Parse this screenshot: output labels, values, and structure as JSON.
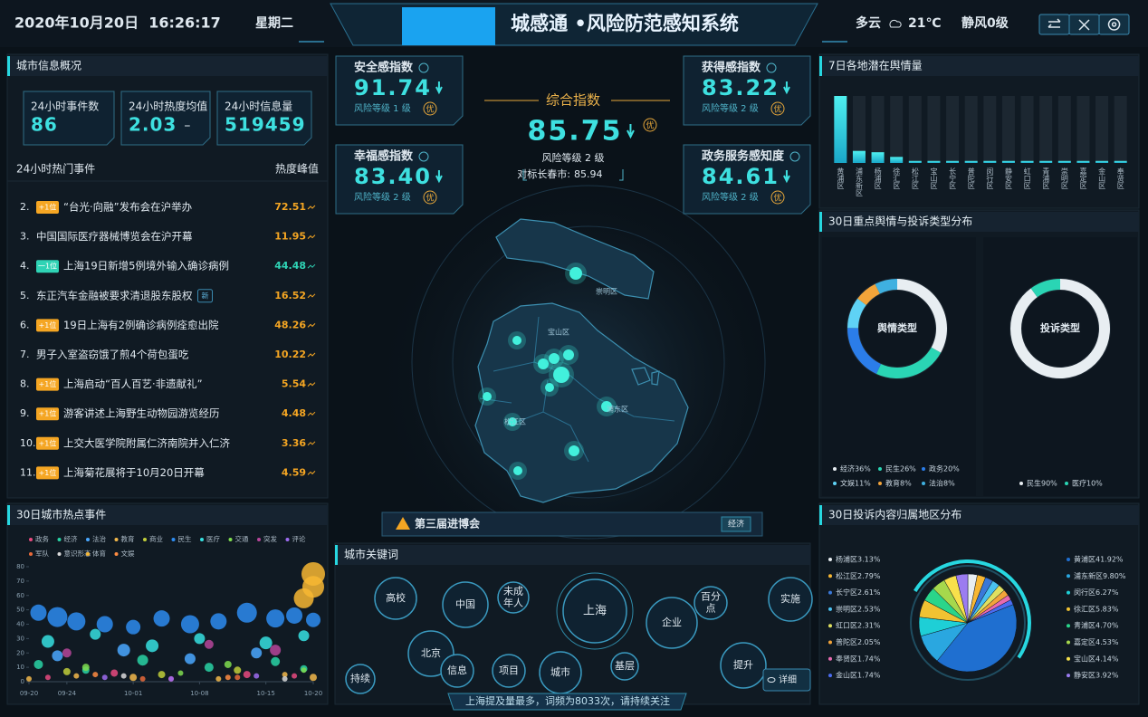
{
  "header": {
    "date": "2020年10月20日  16:26:17",
    "weekday": "星期二",
    "title": "城感通 •风险防范感知系统",
    "weather": "多云",
    "temperature": "21℃",
    "wind": "静风0级"
  },
  "overview": {
    "title": "城市信息概况",
    "cards": [
      {
        "label": "24小时事件数",
        "value": 86
      },
      {
        "label": "24小时热度均值",
        "value": 2.03,
        "trend": "–"
      },
      {
        "label": "24小时信息量",
        "value": 519459
      }
    ]
  },
  "hot_events": {
    "title": "24小时热门事件",
    "value_header": "热度峰值",
    "value_color": "#f5a623",
    "items": [
      {
        "rank": "2.",
        "tag": "+1位",
        "text": "“台光·向融”发布会在沪举办",
        "value": 72.51
      },
      {
        "rank": "3.",
        "text": "中国国际医疗器械博览会在沪开幕",
        "value": 11.95
      },
      {
        "rank": "4.",
        "tag": "一1位",
        "text": "上海19日新增5例境外输入确诊病例",
        "value": 44.48,
        "color": "#2fd3b5"
      },
      {
        "rank": "5.",
        "text": "东正汽车金融被要求清退股东股权",
        "badge": "新",
        "value": 16.52
      },
      {
        "rank": "6.",
        "tag": "+1位",
        "text": "19日上海有2例确诊病例痊愈出院",
        "value": 48.26
      },
      {
        "rank": "7.",
        "text": "男子入室盗窃饿了煎4个荷包蛋吃",
        "value": 10.22
      },
      {
        "rank": "8.",
        "tag": "+1位",
        "text": "上海启动“百人百艺·非遗献礼”",
        "value": 5.54
      },
      {
        "rank": "9.",
        "tag": "+1位",
        "text": "游客讲述上海野生动物园游览经历",
        "value": 4.48
      },
      {
        "rank": "10.",
        "tag": "+1位",
        "text": "上交大医学院附属仁济南院并入仁济",
        "value": 3.36
      },
      {
        "rank": "11.",
        "tag": "+1位",
        "text": "上海菊花展将于10月20日开幕",
        "value": 4.59
      }
    ]
  },
  "indices": {
    "composite": {
      "label": "综合指数",
      "value": 85.75,
      "grade": "优",
      "risk": "风险等级 2 级",
      "benchmark_label": "对标长春市:",
      "benchmark": 85.94
    },
    "cards": [
      {
        "label": "安全感指数",
        "value": 91.74,
        "risk": "风险等级 1 级",
        "grade": "优"
      },
      {
        "label": "获得感指数",
        "value": 83.22,
        "risk": "风险等级 2 级",
        "grade": "优"
      },
      {
        "label": "幸福感指数",
        "value": 83.4,
        "value_label": "83.40",
        "risk": "风险等级 2 级",
        "grade": "优"
      },
      {
        "label": "政务服务感知度",
        "value": 84.61,
        "risk": "风险等级 2 级",
        "grade": "优"
      }
    ]
  },
  "map": {
    "districts": [
      "崇明区",
      "宝山区",
      "浦东区",
      "松江区"
    ]
  },
  "alert": {
    "text": "第三届进博会",
    "tag": "经济"
  },
  "keywords": {
    "title": "城市关键词",
    "words": [
      "高校",
      "中国",
      "未成年人",
      "上海",
      "百分点",
      "实施",
      "北京",
      "信息",
      "项目",
      "城市",
      "基层",
      "企业",
      "提升",
      "持续"
    ],
    "detail": "详细",
    "summary": "上海提及量最多，词频为8033次，请持续关注"
  },
  "sections": {
    "type_distribution": "30日重点舆情与投诉类型分布"
  },
  "chart_data": [
    {
      "type": "scatter",
      "title": "30日城市热点事件",
      "xlim": [
        "09-20",
        "10-20"
      ],
      "xticks": [
        "09-20",
        "09-24",
        "10-01",
        "10-08",
        "10-15",
        "10-20"
      ],
      "ylim": [
        0,
        80
      ],
      "yticks": [
        0,
        10,
        20,
        30,
        40,
        50,
        60,
        70,
        80
      ],
      "series": [
        {
          "name": "政务",
          "color": "#e84a7f",
          "x": [
            "09-22",
            "09-29",
            "10-05",
            "10-13",
            "10-18"
          ],
          "values": [
            3,
            6,
            2,
            5,
            4
          ],
          "sizes": [
            3,
            4,
            3,
            4,
            3
          ]
        },
        {
          "name": "经济",
          "color": "#29d3a5",
          "x": [
            "09-21",
            "09-26",
            "10-02",
            "10-09",
            "10-16",
            "10-19"
          ],
          "values": [
            12,
            8,
            15,
            10,
            14,
            9
          ],
          "sizes": [
            5,
            4,
            6,
            5,
            5,
            4
          ]
        },
        {
          "name": "法治",
          "color": "#4aa8ff",
          "x": [
            "09-23",
            "09-30",
            "10-07",
            "10-14"
          ],
          "values": [
            18,
            22,
            16,
            20
          ],
          "sizes": [
            6,
            7,
            6,
            6
          ]
        },
        {
          "name": "教育",
          "color": "#f2b84b",
          "x": [
            "09-20",
            "09-25",
            "10-01",
            "10-10",
            "10-17",
            "10-20"
          ],
          "values": [
            2,
            4,
            3,
            2,
            5,
            3
          ],
          "sizes": [
            3,
            3,
            4,
            3,
            3,
            4
          ]
        },
        {
          "name": "商业",
          "color": "#c0ce3a",
          "x": [
            "09-24",
            "10-04",
            "10-12"
          ],
          "values": [
            7,
            5,
            8
          ],
          "sizes": [
            4,
            4,
            4
          ]
        },
        {
          "name": "民生",
          "color": "#2d8cf0",
          "x": [
            "09-21",
            "09-23",
            "09-25",
            "09-28",
            "10-01",
            "10-04",
            "10-07",
            "10-10",
            "10-13",
            "10-16",
            "10-18",
            "10-20"
          ],
          "values": [
            48,
            45,
            42,
            40,
            38,
            44,
            40,
            42,
            48,
            44,
            46,
            43
          ],
          "sizes": [
            9,
            11,
            10,
            9,
            8,
            9,
            10,
            9,
            11,
            10,
            9,
            8
          ]
        },
        {
          "name": "医疗",
          "color": "#36e0e0",
          "x": [
            "09-22",
            "09-27",
            "10-03",
            "10-08",
            "10-15",
            "10-19"
          ],
          "values": [
            28,
            33,
            25,
            30,
            27,
            32
          ],
          "sizes": [
            7,
            6,
            7,
            6,
            7,
            6
          ]
        },
        {
          "name": "交通",
          "color": "#7fdc4f",
          "x": [
            "09-26",
            "10-06",
            "10-11",
            "10-19"
          ],
          "values": [
            10,
            6,
            12,
            8
          ],
          "sizes": [
            4,
            3,
            4,
            3
          ]
        },
        {
          "name": "突发",
          "color": "#b6469a",
          "x": [
            "09-24",
            "10-09",
            "10-16"
          ],
          "values": [
            20,
            26,
            22
          ],
          "sizes": [
            5,
            5,
            6
          ]
        },
        {
          "name": "评论",
          "color": "#9d6cf0",
          "x": [
            "09-28",
            "10-05",
            "10-14"
          ],
          "values": [
            3,
            2,
            4
          ],
          "sizes": [
            3,
            3,
            3
          ]
        },
        {
          "name": "军队",
          "color": "#e86a3a",
          "x": [
            "10-02",
            "10-12"
          ],
          "values": [
            2,
            3
          ],
          "sizes": [
            3,
            3
          ]
        },
        {
          "name": "意识形态",
          "color": "#d9d9d9",
          "x": [
            "09-30",
            "10-17"
          ],
          "values": [
            4,
            2
          ],
          "sizes": [
            3,
            3
          ]
        },
        {
          "name": "体育",
          "color": "#f7b733",
          "x": [
            "10-19",
            "10-20",
            "10-20"
          ],
          "values": [
            58,
            66,
            75
          ],
          "sizes": [
            11,
            12,
            13
          ]
        },
        {
          "name": "文娱",
          "color": "#ff8c42",
          "x": [
            "09-27",
            "10-11"
          ],
          "values": [
            5,
            3
          ],
          "sizes": [
            3,
            3
          ]
        }
      ]
    },
    {
      "type": "bar",
      "title": "7日各地潜在舆情量",
      "color": "#27d7e0",
      "categories": [
        "黄浦区",
        "浦东新区",
        "杨浦区",
        "徐汇区",
        "松江区",
        "宝山区",
        "长宁区",
        "普陀区",
        "闵行区",
        "静安区",
        "虹口区",
        "青浦区",
        "崇明区",
        "嘉定区",
        "金山区",
        "奉贤区"
      ],
      "values": [
        100,
        18,
        16,
        9,
        3,
        3,
        3,
        3,
        3,
        3,
        3,
        3,
        3,
        3,
        3,
        3
      ]
    },
    {
      "type": "pie",
      "donut": true,
      "title": "舆情类型",
      "categories": [
        "经济",
        "民生",
        "政务",
        "文娱",
        "教育",
        "法治"
      ],
      "values": [
        36,
        26,
        20,
        11,
        8,
        8
      ],
      "value_labels": [
        "36%",
        "26%",
        "20%",
        "11%",
        "8%",
        "8%"
      ],
      "colors": [
        "#e8eef2",
        "#2ad5b4",
        "#2b7de9",
        "#5fd2f5",
        "#f2a43a",
        "#3fb0e0"
      ]
    },
    {
      "type": "pie",
      "donut": true,
      "title": "投诉类型",
      "categories": [
        "民生",
        "医疗"
      ],
      "values": [
        90,
        10
      ],
      "value_labels": [
        "90%",
        "10%"
      ],
      "colors": [
        "#e8eef2",
        "#2ad5b4"
      ]
    },
    {
      "type": "pie",
      "title": "30日投诉内容归属地区分布",
      "categories": [
        "杨浦区",
        "松江区",
        "长宁区",
        "崇明区",
        "虹口区",
        "普陀区",
        "奉贤区",
        "金山区",
        "黄浦区",
        "浦东新区",
        "闵行区",
        "徐汇区",
        "青浦区",
        "嘉定区",
        "宝山区",
        "静安区"
      ],
      "values": [
        3.13,
        2.79,
        2.61,
        2.53,
        2.31,
        2.05,
        1.74,
        1.74,
        41.92,
        9.8,
        6.27,
        5.83,
        4.7,
        4.53,
        4.14,
        3.92
      ],
      "value_labels": [
        "3.13%",
        "2.79%",
        "2.61%",
        "2.53%",
        "2.31%",
        "2.05%",
        "1.74%",
        "1.74%",
        "41.92%",
        "9.80%",
        "6.27%",
        "5.83%",
        "4.70%",
        "4.53%",
        "4.14%",
        "3.92%"
      ],
      "colors": [
        "#e8eef2",
        "#f7b733",
        "#3a78d8",
        "#4ac0f0",
        "#e0e060",
        "#f2a43a",
        "#e86ab0",
        "#4b6cf0",
        "#1f6fd0",
        "#2aa7e0",
        "#1ecfd6",
        "#f1c232",
        "#2ad58a",
        "#a6d84c",
        "#f7e04b",
        "#9b7cf0"
      ]
    }
  ]
}
